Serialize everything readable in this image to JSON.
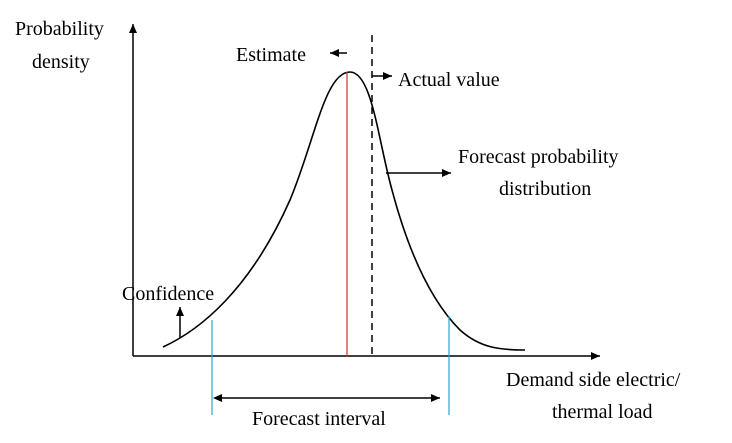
{
  "y_axis": {
    "line1": "Probability",
    "line2": "density"
  },
  "x_axis": {
    "line1": "Demand side electric/",
    "line2": "thermal load"
  },
  "annotations": {
    "estimate": "Estimate",
    "actual_value": "Actual value",
    "forecast_distribution_line1": "Forecast probability",
    "forecast_distribution_line2": "distribution",
    "confidence": "Confidence",
    "forecast_interval": "Forecast interval"
  },
  "colors": {
    "estimate_line": "#c0392b",
    "interval_bounds": "#2aa7c9",
    "curve": "#000000"
  }
}
